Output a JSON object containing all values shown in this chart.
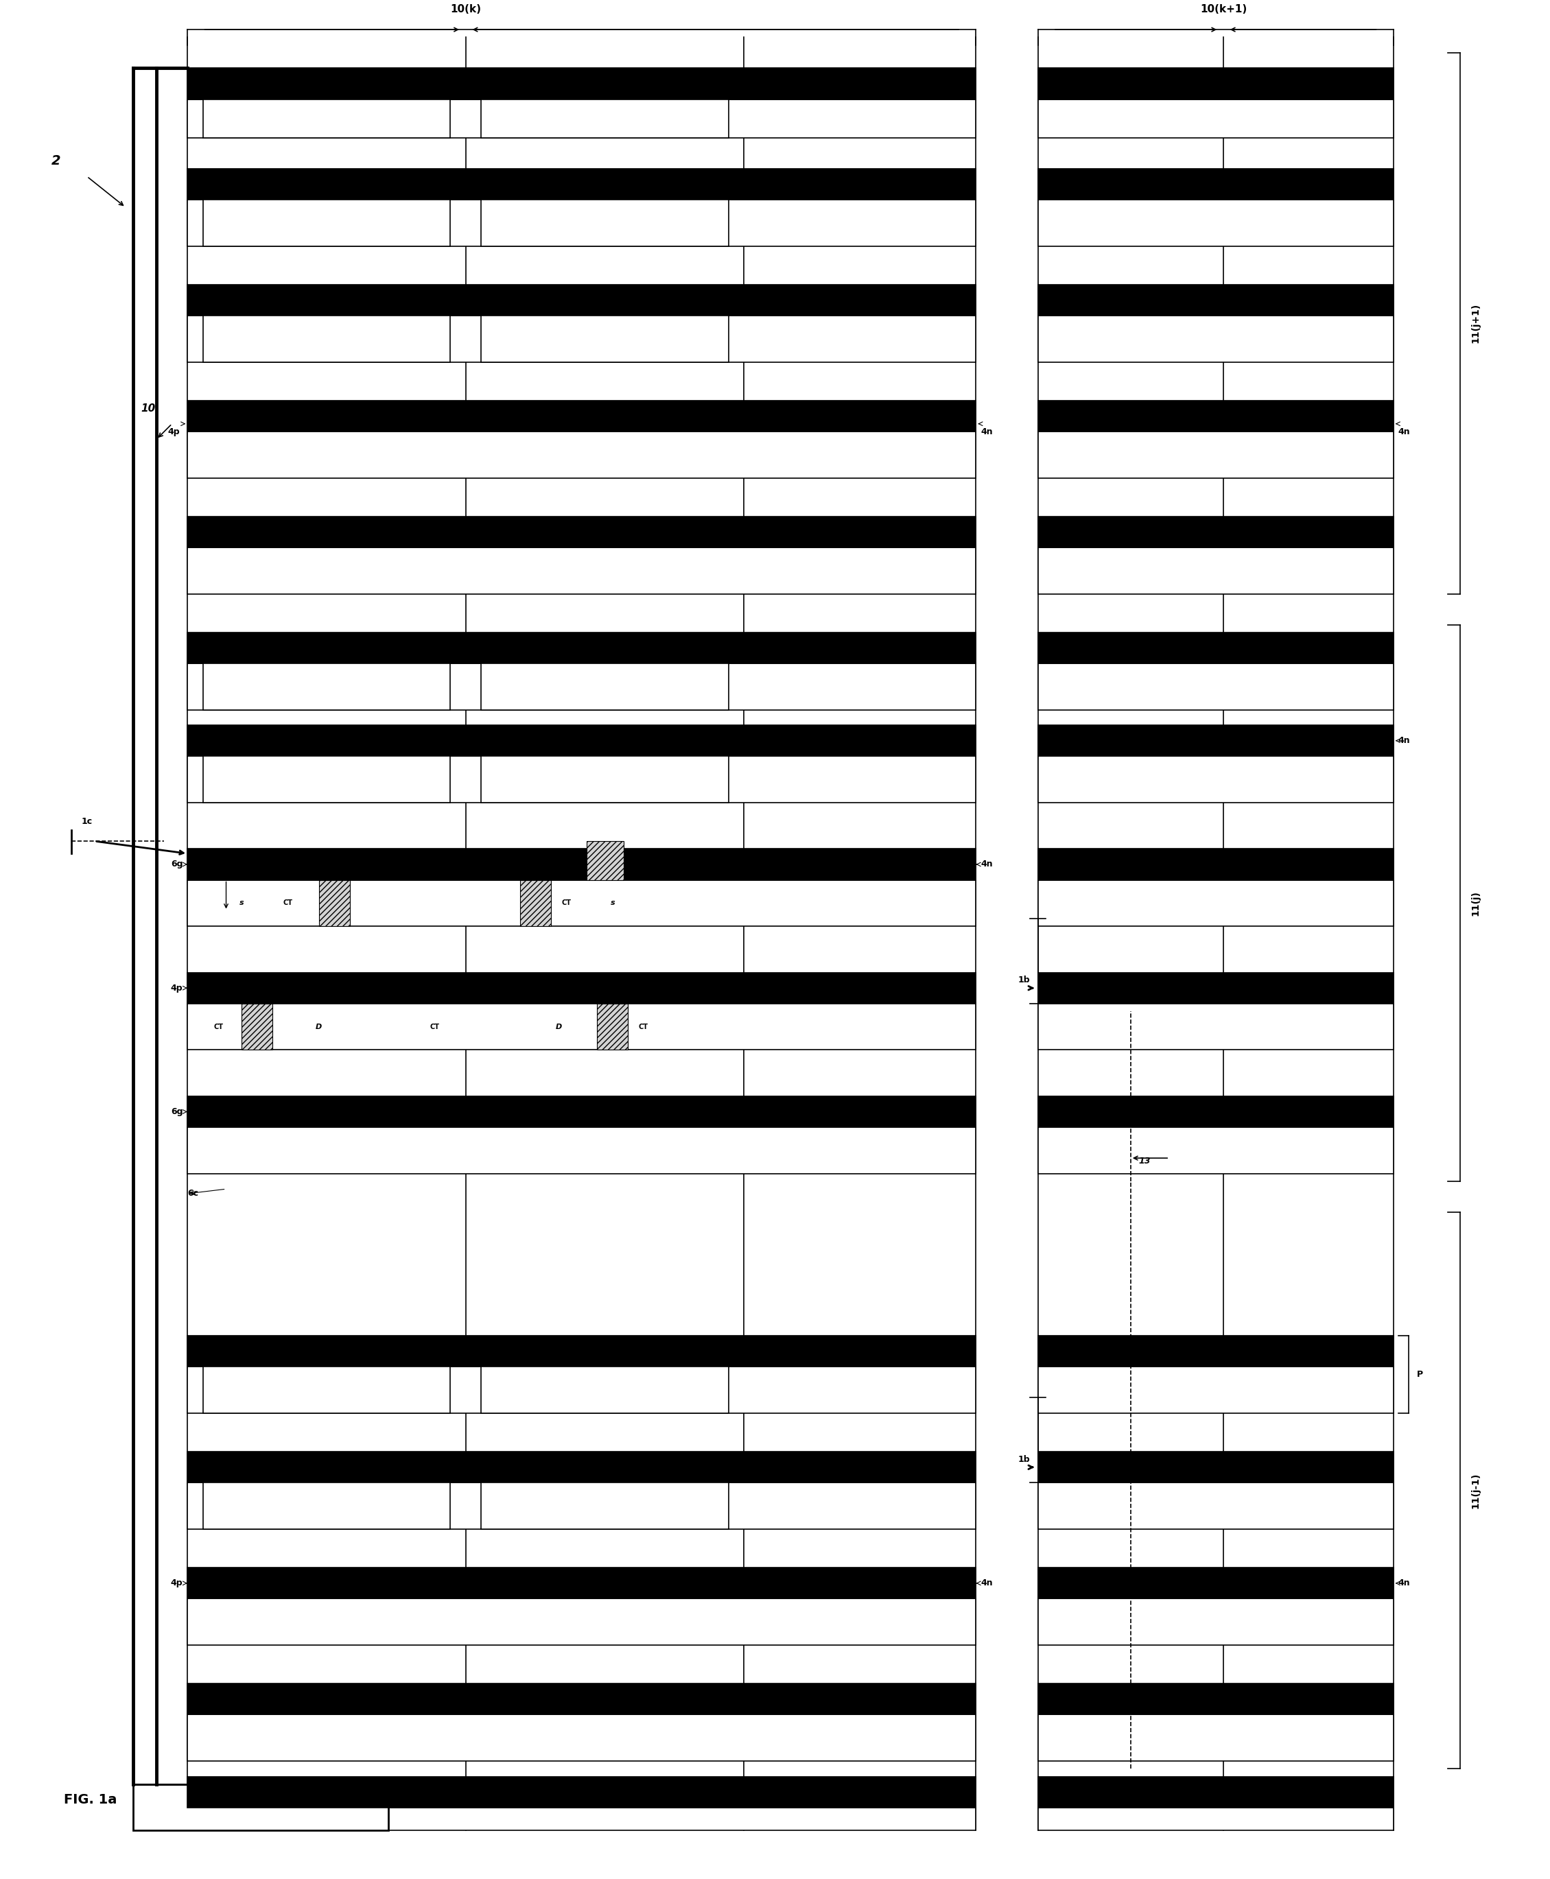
{
  "fig_width": 22.59,
  "fig_height": 27.39,
  "bg_color": "#ffffff",
  "lc": "#000000",
  "thin_lw": 1.2,
  "med_lw": 2.0,
  "thick_lw": 3.5,
  "xlim": [
    0,
    100
  ],
  "ylim": [
    0,
    121
  ],
  "labels": {
    "fig": "FIG. 1a",
    "label2": "2",
    "label10": "10",
    "label1c_arrow": "1c",
    "label6g_top": "6g",
    "label6g_bot": "6g",
    "label4p_j": "4p",
    "label4n_j": "4n",
    "label4n_j_r": "4n",
    "label1c_box": "1c",
    "label6c": "6c",
    "label4p_jm1": "4p",
    "label4n_jm1": "4n",
    "label4n_jm1_r": "4n",
    "label4p_jp1": "4p",
    "label4n_jp1": "4n",
    "label4n_jp1_r": "4n",
    "label1b_j": "1b",
    "label1b_jm1": "1b",
    "label13": "13",
    "labelP": "P",
    "label10k": "10(k)",
    "label10k1": "10(k+1)",
    "label11jp1": "11(j+1)",
    "label11j": "11(j)",
    "label11jm1": "11(j-1)",
    "s1": "s",
    "s2": "s",
    "CT1": "CT",
    "CT2": "CT",
    "CT3": "CT",
    "CT4": "CT",
    "CT5": "CT",
    "CT6": "CT",
    "D1": "D",
    "D2": "D"
  }
}
